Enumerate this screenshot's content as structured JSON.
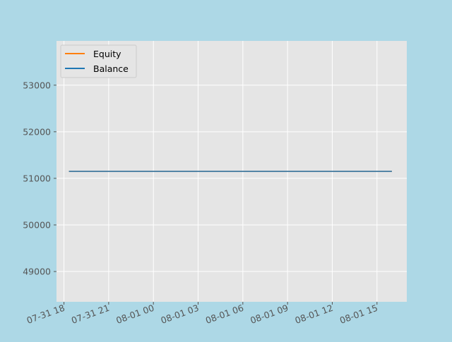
{
  "chart_data": {
    "type": "line",
    "x_ticks": [
      "07-31 18",
      "07-31 21",
      "08-01 00",
      "08-01 03",
      "08-01 06",
      "08-01 09",
      "08-01 12",
      "08-01 15"
    ],
    "y_ticks": [
      "49000",
      "50000",
      "51000",
      "52000",
      "53000"
    ],
    "xlim": [
      "2024-07-31 17:30",
      "2024-08-01 17:00"
    ],
    "ylim": [
      48350,
      53950
    ],
    "grid": true,
    "legend_position": "top-left",
    "series": [
      {
        "name": "Equity",
        "color": "#ff7f0e",
        "x": [
          "2024-07-31 18:20",
          "2024-08-01 16:00"
        ],
        "values": [
          51150,
          51150
        ]
      },
      {
        "name": "Balance",
        "color": "#1f77b4",
        "x": [
          "2024-07-31 18:20",
          "2024-08-01 16:00"
        ],
        "values": [
          51150,
          51150
        ]
      }
    ]
  }
}
